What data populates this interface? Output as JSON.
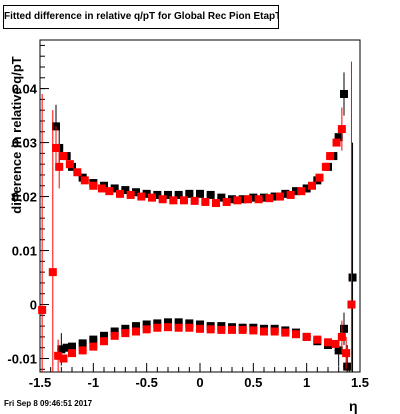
{
  "title": "Fitted difference in relative q/pT for Global Rec Pion EtapT",
  "timestamp": "Fri Sep  8 09:46:51 2017",
  "colors": {
    "frame": "#000000",
    "series_black": "#000000",
    "series_red": "#ff0000"
  },
  "chart_data": {
    "type": "scatter",
    "xlabel": "η",
    "ylabel": "difference in relative q/pT",
    "xlim": [
      -1.5,
      1.5
    ],
    "ylim": [
      -0.0125,
      0.049
    ],
    "xticks": [
      -1.5,
      -1,
      -0.5,
      0,
      0.5,
      1,
      1.5
    ],
    "xtick_labels": [
      "-1.5",
      "-1",
      "-0.5",
      "0",
      "0.5",
      "1",
      "1.5"
    ],
    "yticks": [
      -0.01,
      0,
      0.01,
      0.02,
      0.03,
      0.04
    ],
    "ytick_labels": [
      "-0.01",
      "0",
      "0.01",
      "0.02",
      "0.03",
      "0.04"
    ],
    "grid": false,
    "series": [
      {
        "marker": "square",
        "color": "#000000",
        "points": [
          {
            "x": -1.35,
            "y": 0.033,
            "err": 0.004
          },
          {
            "x": -1.32,
            "y": 0.029,
            "err": 0.004
          },
          {
            "x": -1.25,
            "y": 0.0275
          },
          {
            "x": -1.2,
            "y": 0.0255
          },
          {
            "x": -1.1,
            "y": 0.0235
          },
          {
            "x": -1.0,
            "y": 0.0225
          },
          {
            "x": -0.9,
            "y": 0.022
          },
          {
            "x": -0.8,
            "y": 0.0215
          },
          {
            "x": -0.7,
            "y": 0.0212
          },
          {
            "x": -0.6,
            "y": 0.0208
          },
          {
            "x": -0.5,
            "y": 0.0205
          },
          {
            "x": -0.4,
            "y": 0.0203
          },
          {
            "x": -0.3,
            "y": 0.0203
          },
          {
            "x": -0.2,
            "y": 0.0203
          },
          {
            "x": -0.1,
            "y": 0.0205
          },
          {
            "x": 0.0,
            "y": 0.0205
          },
          {
            "x": 0.1,
            "y": 0.0203
          },
          {
            "x": 0.2,
            "y": 0.0198
          },
          {
            "x": 0.3,
            "y": 0.0195
          },
          {
            "x": 0.4,
            "y": 0.0195
          },
          {
            "x": 0.5,
            "y": 0.0198
          },
          {
            "x": 0.6,
            "y": 0.0198
          },
          {
            "x": 0.7,
            "y": 0.02
          },
          {
            "x": 0.8,
            "y": 0.0205
          },
          {
            "x": 0.9,
            "y": 0.021
          },
          {
            "x": 1.0,
            "y": 0.0215
          },
          {
            "x": 1.1,
            "y": 0.023
          },
          {
            "x": 1.2,
            "y": 0.0255
          },
          {
            "x": 1.25,
            "y": 0.0275
          },
          {
            "x": 1.3,
            "y": 0.031
          },
          {
            "x": 1.35,
            "y": 0.039,
            "err": 0.004
          },
          {
            "x": -1.3,
            "y": -0.0083,
            "err": 0.003
          },
          {
            "x": -1.25,
            "y": -0.008
          },
          {
            "x": -1.2,
            "y": -0.0078
          },
          {
            "x": -1.1,
            "y": -0.0072
          },
          {
            "x": -1.0,
            "y": -0.0065
          },
          {
            "x": -0.9,
            "y": -0.0058
          },
          {
            "x": -0.8,
            "y": -0.005
          },
          {
            "x": -0.7,
            "y": -0.0045
          },
          {
            "x": -0.6,
            "y": -0.004
          },
          {
            "x": -0.5,
            "y": -0.0037
          },
          {
            "x": -0.4,
            "y": -0.0035
          },
          {
            "x": -0.3,
            "y": -0.0033
          },
          {
            "x": -0.2,
            "y": -0.0033
          },
          {
            "x": -0.1,
            "y": -0.0035
          },
          {
            "x": 0.0,
            "y": -0.0037
          },
          {
            "x": 0.1,
            "y": -0.004
          },
          {
            "x": 0.2,
            "y": -0.004
          },
          {
            "x": 0.3,
            "y": -0.0042
          },
          {
            "x": 0.4,
            "y": -0.0043
          },
          {
            "x": 0.5,
            "y": -0.0043
          },
          {
            "x": 0.6,
            "y": -0.0045
          },
          {
            "x": 0.7,
            "y": -0.0045
          },
          {
            "x": 0.8,
            "y": -0.0048
          },
          {
            "x": 0.9,
            "y": -0.0052
          },
          {
            "x": 1.0,
            "y": -0.006
          },
          {
            "x": 1.1,
            "y": -0.0068
          },
          {
            "x": 1.2,
            "y": -0.0075
          },
          {
            "x": 1.3,
            "y": -0.0085,
            "err": 0.003
          },
          {
            "x": 1.35,
            "y": -0.0045,
            "err": 0.003
          },
          {
            "x": 1.38,
            "y": -0.0115,
            "err": 0.004
          },
          {
            "x": 1.43,
            "y": 0.005,
            "err": 0.025
          }
        ]
      },
      {
        "marker": "square",
        "color": "#ff0000",
        "points": [
          {
            "x": -1.48,
            "y": -0.001,
            "err": 0.04
          },
          {
            "x": -1.38,
            "y": 0.006,
            "err": 0.03
          },
          {
            "x": -1.35,
            "y": 0.029,
            "err": 0.004
          },
          {
            "x": -1.32,
            "y": 0.0255,
            "err": 0.004
          },
          {
            "x": -1.28,
            "y": 0.0275
          },
          {
            "x": -1.22,
            "y": 0.026
          },
          {
            "x": -1.15,
            "y": 0.0245
          },
          {
            "x": -1.08,
            "y": 0.023
          },
          {
            "x": -1.0,
            "y": 0.022
          },
          {
            "x": -0.92,
            "y": 0.0215
          },
          {
            "x": -0.85,
            "y": 0.021
          },
          {
            "x": -0.75,
            "y": 0.0205
          },
          {
            "x": -0.65,
            "y": 0.0203
          },
          {
            "x": -0.55,
            "y": 0.02
          },
          {
            "x": -0.45,
            "y": 0.0198
          },
          {
            "x": -0.35,
            "y": 0.0195
          },
          {
            "x": -0.25,
            "y": 0.0193
          },
          {
            "x": -0.15,
            "y": 0.0193
          },
          {
            "x": -0.05,
            "y": 0.0192
          },
          {
            "x": 0.05,
            "y": 0.019
          },
          {
            "x": 0.15,
            "y": 0.0188
          },
          {
            "x": 0.25,
            "y": 0.019
          },
          {
            "x": 0.35,
            "y": 0.0193
          },
          {
            "x": 0.45,
            "y": 0.0195
          },
          {
            "x": 0.55,
            "y": 0.0195
          },
          {
            "x": 0.65,
            "y": 0.0197
          },
          {
            "x": 0.75,
            "y": 0.02
          },
          {
            "x": 0.85,
            "y": 0.0203
          },
          {
            "x": 0.95,
            "y": 0.021
          },
          {
            "x": 1.05,
            "y": 0.022
          },
          {
            "x": 1.12,
            "y": 0.0235
          },
          {
            "x": 1.18,
            "y": 0.0255
          },
          {
            "x": 1.22,
            "y": 0.0275
          },
          {
            "x": 1.28,
            "y": 0.03
          },
          {
            "x": 1.33,
            "y": 0.0325,
            "err": 0.004
          },
          {
            "x": -1.33,
            "y": -0.0095,
            "err": 0.003
          },
          {
            "x": -1.28,
            "y": -0.01
          },
          {
            "x": -1.2,
            "y": -0.009
          },
          {
            "x": -1.1,
            "y": -0.0085
          },
          {
            "x": -1.0,
            "y": -0.0078
          },
          {
            "x": -0.9,
            "y": -0.0068
          },
          {
            "x": -0.8,
            "y": -0.0058
          },
          {
            "x": -0.7,
            "y": -0.0053
          },
          {
            "x": -0.6,
            "y": -0.005
          },
          {
            "x": -0.5,
            "y": -0.0046
          },
          {
            "x": -0.4,
            "y": -0.0043
          },
          {
            "x": -0.3,
            "y": -0.0042
          },
          {
            "x": -0.2,
            "y": -0.0043
          },
          {
            "x": -0.1,
            "y": -0.0043
          },
          {
            "x": 0.0,
            "y": -0.0045
          },
          {
            "x": 0.1,
            "y": -0.0046
          },
          {
            "x": 0.2,
            "y": -0.0047
          },
          {
            "x": 0.3,
            "y": -0.0047
          },
          {
            "x": 0.4,
            "y": -0.0047
          },
          {
            "x": 0.5,
            "y": -0.0048
          },
          {
            "x": 0.6,
            "y": -0.005
          },
          {
            "x": 0.7,
            "y": -0.005
          },
          {
            "x": 0.8,
            "y": -0.0052
          },
          {
            "x": 0.9,
            "y": -0.0055
          },
          {
            "x": 1.0,
            "y": -0.006
          },
          {
            "x": 1.1,
            "y": -0.0065
          },
          {
            "x": 1.2,
            "y": -0.007
          },
          {
            "x": 1.27,
            "y": -0.0073
          },
          {
            "x": 1.33,
            "y": -0.006,
            "err": 0.003
          },
          {
            "x": 1.37,
            "y": -0.009,
            "err": 0.003
          },
          {
            "x": 1.42,
            "y": 0.0,
            "err": 0.045
          }
        ]
      }
    ]
  }
}
